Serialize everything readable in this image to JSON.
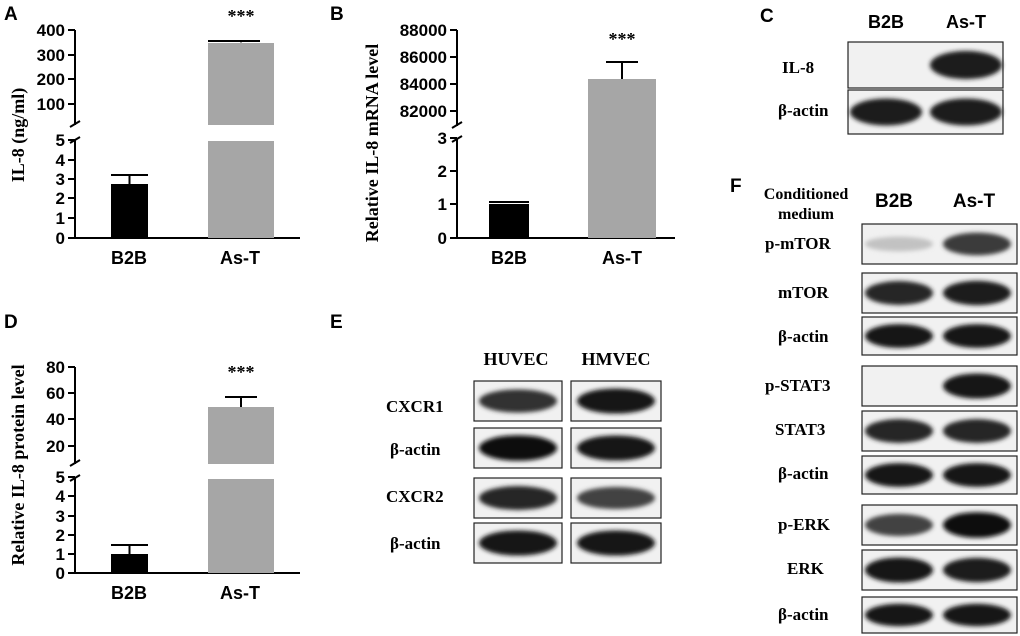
{
  "panels": {
    "A": {
      "letter": "A"
    },
    "B": {
      "letter": "B"
    },
    "C": {
      "letter": "C"
    },
    "D": {
      "letter": "D"
    },
    "E": {
      "letter": "E"
    },
    "F": {
      "letter": "F"
    }
  },
  "chart_data": [
    {
      "panel": "A",
      "type": "bar",
      "ylabel": "IL-8 (ng/ml)",
      "categories": [
        "B2B",
        "As-T"
      ],
      "values": [
        2.7,
        350
      ],
      "errors": [
        0.5,
        5
      ],
      "colors": [
        "#000000",
        "#a6a6a6"
      ],
      "axis_break": true,
      "lower_ticks": [
        "0",
        "1",
        "2",
        "3",
        "4",
        "5"
      ],
      "upper_ticks": [
        "100",
        "200",
        "300",
        "400"
      ],
      "significance": "***"
    },
    {
      "panel": "B",
      "type": "bar",
      "ylabel": "Relative IL-8 mRNA level",
      "categories": [
        "B2B",
        "As-T"
      ],
      "values": [
        1.0,
        84300
      ],
      "errors": [
        0.05,
        1350
      ],
      "colors": [
        "#000000",
        "#a6a6a6"
      ],
      "axis_break": true,
      "lower_ticks": [
        "0",
        "1",
        "2",
        "3"
      ],
      "upper_ticks": [
        "82000",
        "84000",
        "86000",
        "88000"
      ],
      "significance": "***"
    },
    {
      "panel": "D",
      "type": "bar",
      "ylabel": "Relative IL-8 protein level",
      "categories": [
        "B2B",
        "As-T"
      ],
      "values": [
        1.0,
        51
      ],
      "errors": [
        0.5,
        8
      ],
      "colors": [
        "#000000",
        "#a6a6a6"
      ],
      "axis_break": true,
      "lower_ticks": [
        "0",
        "1",
        "2",
        "3",
        "4",
        "5"
      ],
      "upper_ticks": [
        "20",
        "40",
        "60",
        "80"
      ],
      "significance": "***"
    }
  ],
  "blots": {
    "C": {
      "lanes": [
        "B2B",
        "As-T"
      ],
      "rows": [
        {
          "label": "IL-8",
          "bands": [
            0.0,
            0.9
          ]
        },
        {
          "label": "β-actin",
          "bands": [
            0.9,
            0.9
          ]
        }
      ]
    },
    "E": {
      "cells": [
        "HUVEC",
        "HMVEC"
      ],
      "rows": [
        {
          "label": "CXCR1",
          "bands": [
            0.8,
            0.95
          ]
        },
        {
          "label": "β-actin",
          "bands": [
            1.0,
            0.95
          ]
        },
        {
          "label": "CXCR2",
          "bands": [
            0.85,
            0.7
          ]
        },
        {
          "label": "β-actin",
          "bands": [
            0.95,
            0.95
          ]
        }
      ]
    },
    "F": {
      "header": [
        "Conditioned",
        "medium"
      ],
      "lanes": [
        "B2B",
        "As-T"
      ],
      "rows": [
        {
          "label": "p-mTOR",
          "bands": [
            0.03,
            0.75
          ]
        },
        {
          "label": "mTOR",
          "bands": [
            0.85,
            0.9
          ]
        },
        {
          "label": "β-actin",
          "bands": [
            0.95,
            0.95
          ]
        },
        {
          "label": "p-STAT3",
          "bands": [
            0.0,
            0.95
          ]
        },
        {
          "label": "STAT3",
          "bands": [
            0.85,
            0.85
          ]
        },
        {
          "label": "β-actin",
          "bands": [
            0.95,
            0.95
          ]
        },
        {
          "label": "p-ERK",
          "bands": [
            0.7,
            1.0
          ]
        },
        {
          "label": "ERK",
          "bands": [
            0.95,
            0.9
          ]
        },
        {
          "label": "β-actin",
          "bands": [
            0.95,
            0.95
          ]
        }
      ]
    }
  }
}
